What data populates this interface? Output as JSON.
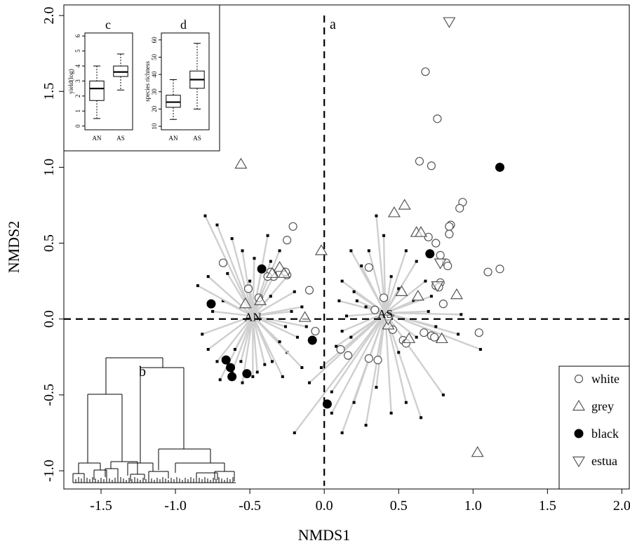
{
  "chart_data": [
    {
      "type": "scatter",
      "panel_label": "a",
      "xlabel": "NMDS1",
      "ylabel": "NMDS2",
      "xlim": [
        -1.75,
        2.05
      ],
      "ylim": [
        -1.12,
        2.07
      ],
      "xticks": [
        "-1.5",
        "-1.0",
        "-0.5",
        "0.0",
        "0.5",
        "1.0",
        "1.5",
        "2.0"
      ],
      "yticks": [
        "-1.0",
        "-0.5",
        "0.0",
        "0.5",
        "1.0",
        "1.5",
        "2.0"
      ],
      "reference_lines": {
        "x": 0,
        "y": 0
      },
      "centroids": [
        {
          "label": "AN",
          "x": -0.48,
          "y": 0.02
        },
        {
          "label": "AS",
          "x": 0.41,
          "y": 0.04
        }
      ],
      "spider_leaves": {
        "AN": [
          [
            -0.8,
            0.68
          ],
          [
            -0.72,
            0.62
          ],
          [
            -0.62,
            0.53
          ],
          [
            -0.55,
            0.45
          ],
          [
            -0.47,
            0.4
          ],
          [
            -0.38,
            0.55
          ],
          [
            -0.3,
            0.45
          ],
          [
            -0.25,
            0.28
          ],
          [
            -0.2,
            0.18
          ],
          [
            -0.15,
            0.08
          ],
          [
            -0.12,
            -0.05
          ],
          [
            -0.18,
            -0.12
          ],
          [
            -0.25,
            -0.22
          ],
          [
            -0.15,
            -0.32
          ],
          [
            -0.28,
            -0.38
          ],
          [
            -0.35,
            -0.28
          ],
          [
            -0.45,
            -0.35
          ],
          [
            -0.55,
            -0.42
          ],
          [
            -0.62,
            -0.35
          ],
          [
            -0.72,
            -0.28
          ],
          [
            -0.78,
            -0.2
          ],
          [
            -0.82,
            -0.1
          ],
          [
            -0.75,
            0.05
          ],
          [
            -0.68,
            0.12
          ],
          [
            -0.85,
            0.22
          ],
          [
            -0.78,
            0.28
          ],
          [
            -0.65,
            0.3
          ],
          [
            -0.7,
            -0.4
          ],
          [
            -0.6,
            -0.2
          ],
          [
            -0.4,
            -0.3
          ],
          [
            -0.33,
            0.3
          ],
          [
            -0.36,
            0.15
          ],
          [
            -0.22,
            0.05
          ],
          [
            -0.3,
            -0.15
          ],
          [
            -0.5,
            0.25
          ],
          [
            -0.42,
            0.33
          ],
          [
            -0.56,
            -0.28
          ],
          [
            -0.48,
            -0.38
          ],
          [
            -0.36,
            0.38
          ],
          [
            -0.26,
            -0.05
          ]
        ],
        "AS": [
          [
            0.18,
            0.45
          ],
          [
            0.25,
            0.35
          ],
          [
            0.12,
            0.25
          ],
          [
            0.2,
            0.18
          ],
          [
            0.1,
            0.12
          ],
          [
            0.15,
            0.02
          ],
          [
            0.12,
            -0.08
          ],
          [
            0.08,
            -0.18
          ],
          [
            -0.02,
            -0.32
          ],
          [
            -0.1,
            -0.42
          ],
          [
            0.05,
            -0.48
          ],
          [
            -0.2,
            -0.75
          ],
          [
            0.05,
            -0.62
          ],
          [
            0.12,
            -0.75
          ],
          [
            0.2,
            -0.55
          ],
          [
            0.28,
            -0.7
          ],
          [
            0.35,
            -0.45
          ],
          [
            0.45,
            -0.62
          ],
          [
            0.55,
            -0.55
          ],
          [
            0.65,
            -0.65
          ],
          [
            0.8,
            -0.5
          ],
          [
            1.05,
            -0.2
          ],
          [
            0.9,
            -0.1
          ],
          [
            0.75,
            -0.05
          ],
          [
            0.92,
            0.03
          ],
          [
            0.7,
            0.05
          ],
          [
            0.6,
            0.12
          ],
          [
            0.62,
            0.38
          ],
          [
            0.55,
            0.45
          ],
          [
            0.35,
            0.68
          ],
          [
            0.4,
            0.55
          ],
          [
            0.3,
            0.45
          ],
          [
            0.22,
            0.12
          ],
          [
            0.18,
            -0.12
          ],
          [
            0.5,
            0.2
          ],
          [
            0.62,
            -0.12
          ],
          [
            0.5,
            -0.22
          ],
          [
            0.35,
            -0.28
          ],
          [
            0.45,
            0.28
          ],
          [
            0.72,
            0.15
          ],
          [
            0.68,
            0.25
          ],
          [
            0.28,
            0.08
          ]
        ]
      },
      "series": [
        {
          "name": "white",
          "marker": "open-circle",
          "color": "#555555",
          "points": [
            [
              0.68,
              1.63
            ],
            [
              0.76,
              1.32
            ],
            [
              0.64,
              1.04
            ],
            [
              0.72,
              1.01
            ],
            [
              0.93,
              0.77
            ],
            [
              0.91,
              0.73
            ],
            [
              0.85,
              0.62
            ],
            [
              0.84,
              0.61
            ],
            [
              0.84,
              0.56
            ],
            [
              0.7,
              0.54
            ],
            [
              0.75,
              0.5
            ],
            [
              0.78,
              0.42
            ],
            [
              0.82,
              0.37
            ],
            [
              0.83,
              0.35
            ],
            [
              1.1,
              0.31
            ],
            [
              1.18,
              0.33
            ],
            [
              0.78,
              0.24
            ],
            [
              0.75,
              0.22
            ],
            [
              0.77,
              0.21
            ],
            [
              0.8,
              0.1
            ],
            [
              0.72,
              -0.11
            ],
            [
              0.74,
              -0.12
            ],
            [
              0.67,
              -0.09
            ],
            [
              0.53,
              -0.14
            ],
            [
              0.55,
              -0.16
            ],
            [
              0.46,
              -0.07
            ],
            [
              0.3,
              0.34
            ],
            [
              0.34,
              0.06
            ],
            [
              0.4,
              0.14
            ],
            [
              0.43,
              0.02
            ],
            [
              0.3,
              -0.26
            ],
            [
              0.36,
              -0.27
            ],
            [
              0.16,
              -0.24
            ],
            [
              0.11,
              -0.2
            ],
            [
              1.04,
              -0.09
            ],
            [
              -0.68,
              0.37
            ],
            [
              -0.21,
              0.61
            ],
            [
              -0.25,
              0.52
            ],
            [
              -0.25,
              0.29
            ],
            [
              -0.34,
              0.28
            ],
            [
              -0.44,
              0.14
            ],
            [
              -0.51,
              0.2
            ],
            [
              -0.1,
              0.19
            ],
            [
              -0.06,
              -0.08
            ],
            [
              -0.26,
              0.31
            ],
            [
              -0.36,
              0.31
            ],
            [
              -0.38,
              0.28
            ]
          ]
        },
        {
          "name": "grey",
          "marker": "open-triangle-up",
          "color": "#555555",
          "points": [
            [
              -0.56,
              1.02
            ],
            [
              -0.53,
              0.1
            ],
            [
              -0.43,
              0.12
            ],
            [
              -0.3,
              0.34
            ],
            [
              -0.27,
              0.3
            ],
            [
              -0.35,
              0.3
            ],
            [
              -0.13,
              0.01
            ],
            [
              -0.02,
              0.45
            ],
            [
              0.47,
              0.7
            ],
            [
              0.54,
              0.75
            ],
            [
              0.62,
              0.57
            ],
            [
              0.65,
              0.57
            ],
            [
              0.52,
              0.18
            ],
            [
              0.63,
              0.15
            ],
            [
              0.89,
              0.16
            ],
            [
              0.57,
              -0.13
            ],
            [
              0.79,
              -0.13
            ],
            [
              0.43,
              -0.04
            ],
            [
              1.03,
              -0.88
            ]
          ]
        },
        {
          "name": "black",
          "marker": "filled-circle",
          "color": "#000000",
          "points": [
            [
              1.18,
              1.0
            ],
            [
              0.71,
              0.43
            ],
            [
              -0.42,
              0.33
            ],
            [
              -0.76,
              0.1
            ],
            [
              -0.66,
              -0.27
            ],
            [
              -0.63,
              -0.32
            ],
            [
              -0.62,
              -0.38
            ],
            [
              -0.52,
              -0.36
            ],
            [
              -0.08,
              -0.14
            ],
            [
              0.02,
              -0.56
            ]
          ]
        },
        {
          "name": "estua",
          "marker": "open-triangle-down",
          "color": "#555555",
          "points": [
            [
              0.84,
              1.96
            ],
            [
              0.78,
              0.37
            ],
            [
              0.76,
              0.22
            ],
            [
              0.43,
              0.0
            ]
          ]
        }
      ],
      "legend": {
        "position": "bottom-right",
        "entries": [
          "white",
          "grey",
          "black",
          "estua"
        ]
      }
    },
    {
      "type": "dendrogram",
      "panel_label": "b"
    },
    {
      "type": "box",
      "panel_label": "c",
      "ylabel": "yield(log)",
      "categories": [
        "AN",
        "AS"
      ],
      "yticks": [
        "0",
        "1",
        "2",
        "3",
        "4",
        "5",
        "6"
      ],
      "ylim": [
        -0.25,
        6.2
      ],
      "boxes": [
        {
          "category": "AN",
          "whisker_low": 0.5,
          "q1": 1.7,
          "median": 2.5,
          "q3": 3.0,
          "whisker_high": 4.0
        },
        {
          "category": "AS",
          "whisker_low": 2.4,
          "q1": 3.3,
          "median": 3.6,
          "q3": 4.0,
          "whisker_high": 4.8
        }
      ]
    },
    {
      "type": "box",
      "panel_label": "d",
      "ylabel": "species richness",
      "categories": [
        "AN",
        "AS"
      ],
      "yticks": [
        "10",
        "20",
        "30",
        "40",
        "50",
        "60"
      ],
      "ylim": [
        8,
        64
      ],
      "boxes": [
        {
          "category": "AN",
          "whisker_low": 14,
          "q1": 21,
          "median": 24,
          "q3": 28,
          "whisker_high": 37
        },
        {
          "category": "AS",
          "whisker_low": 20,
          "q1": 32,
          "median": 37,
          "q3": 42,
          "whisker_high": 58
        }
      ]
    }
  ]
}
